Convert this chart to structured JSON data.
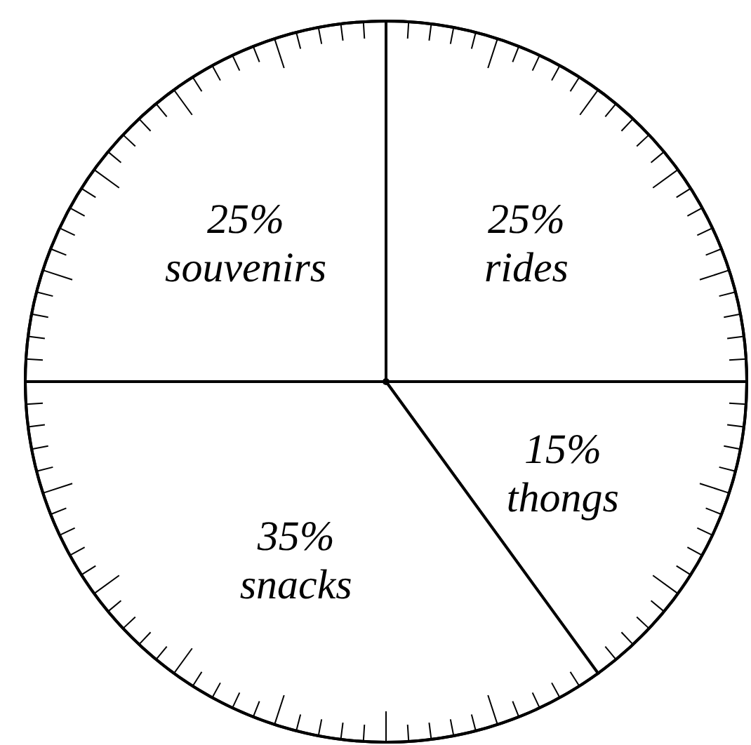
{
  "chart_data": {
    "type": "pie",
    "categories": [
      "rides",
      "thongs",
      "snacks",
      "souvenirs"
    ],
    "values": [
      25,
      15,
      35,
      25
    ],
    "colors": [
      "#ffffff",
      "#ffffff",
      "#ffffff",
      "#ffffff"
    ],
    "value_labels": [
      "25%",
      "15%",
      "35%",
      "25%"
    ]
  }
}
